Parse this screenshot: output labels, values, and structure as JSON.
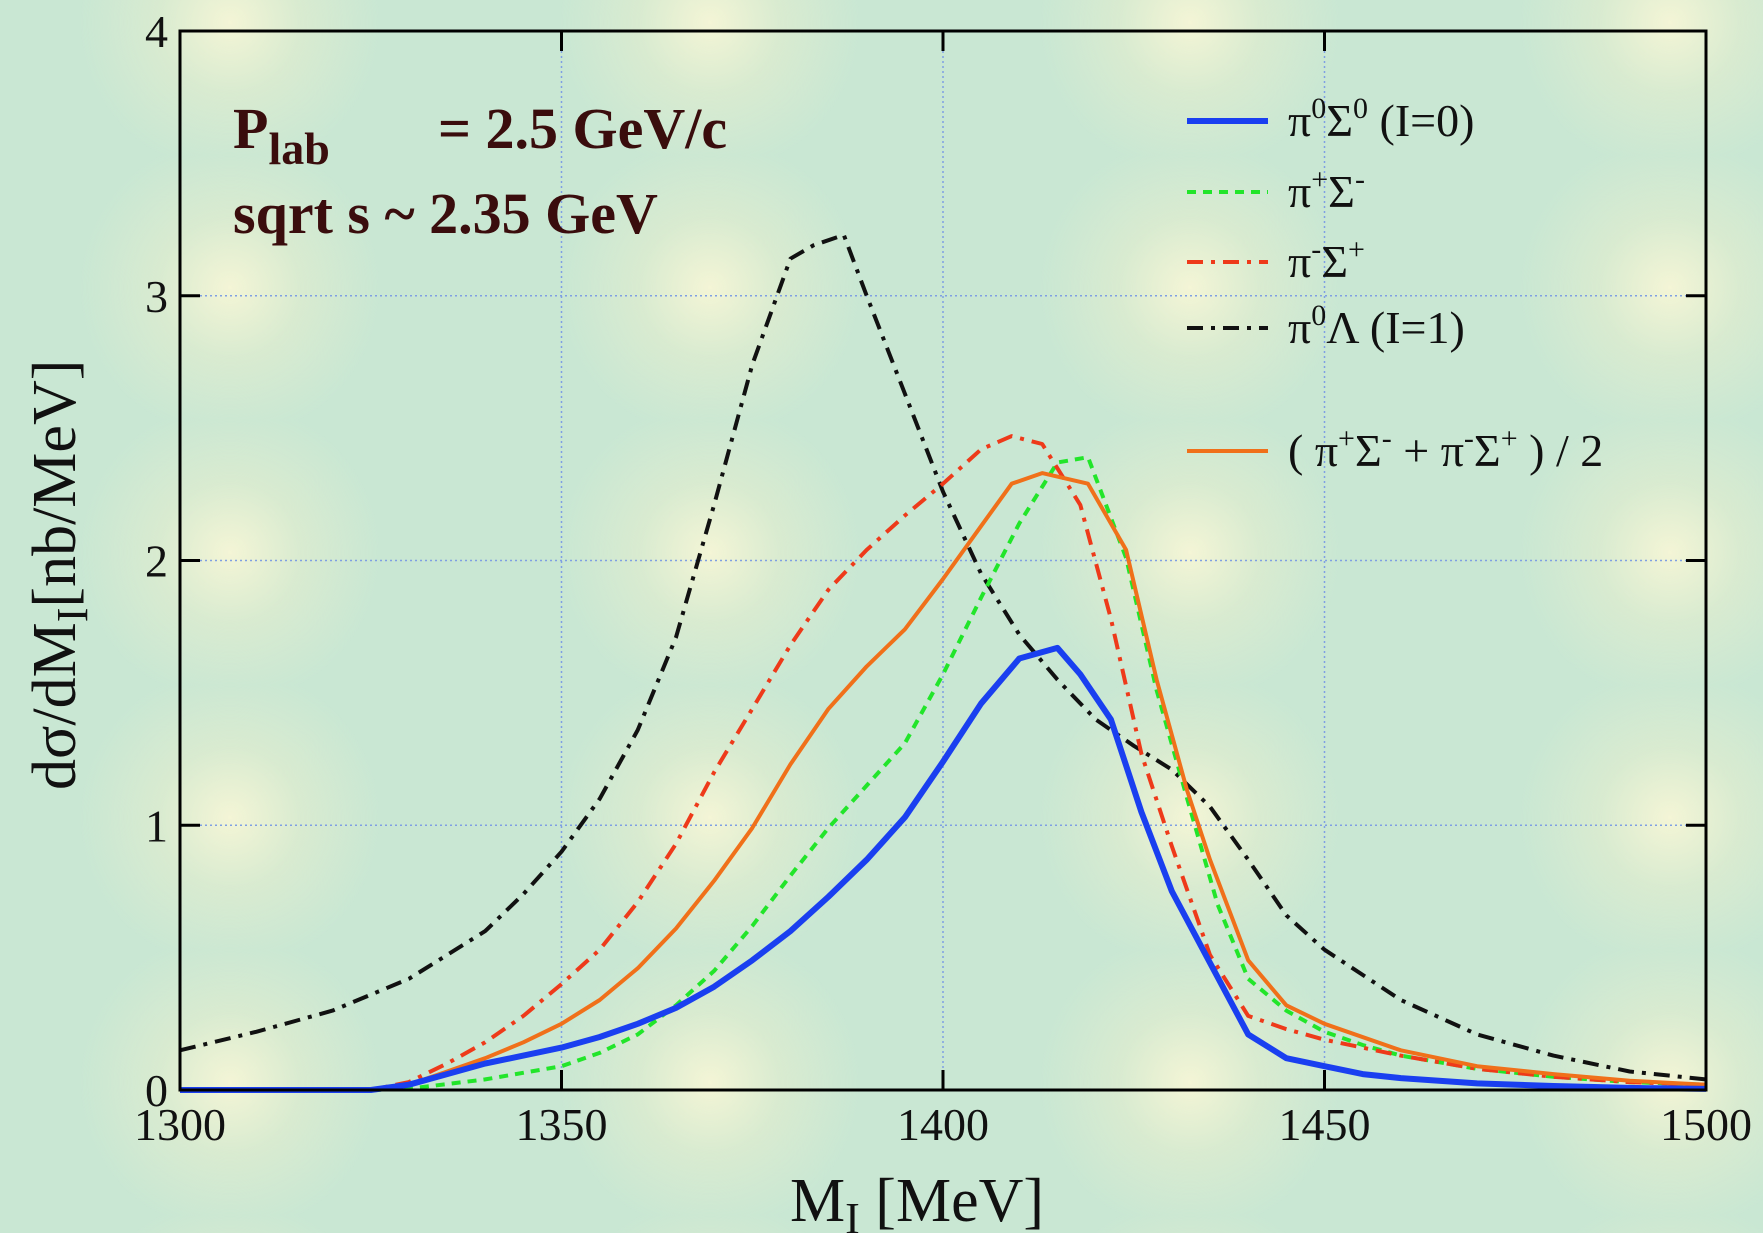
{
  "annotations": {
    "line1": [
      "P",
      "lab",
      "= 2.5 GeV/c"
    ],
    "line2": "sqrt s  ~ 2.35 GeV"
  },
  "chart_data": {
    "type": "line",
    "xlabel": "M_I [MeV]",
    "ylabel": "dσ/dM_I [nb/MeV]",
    "xlim": [
      1300,
      1500
    ],
    "ylim": [
      0,
      4
    ],
    "xticks": [
      1300,
      1350,
      1400,
      1450,
      1500
    ],
    "yticks": [
      0,
      1,
      2,
      3,
      4
    ],
    "grid": true,
    "legend_position": "top-right",
    "series": [
      {
        "key": "pi0sigma0",
        "label": [
          "π",
          "0",
          "Σ",
          "0",
          "  (I=0)"
        ],
        "color": "#1a3ff0",
        "dash": "",
        "width": 6,
        "x": [
          1300,
          1325,
          1330,
          1335,
          1340,
          1345,
          1350,
          1355,
          1360,
          1365,
          1370,
          1375,
          1380,
          1385,
          1390,
          1395,
          1400,
          1405,
          1410,
          1415,
          1418,
          1422,
          1426,
          1430,
          1435,
          1440,
          1445,
          1450,
          1455,
          1460,
          1470,
          1480,
          1490,
          1500
        ],
        "y": [
          0,
          0,
          0.02,
          0.06,
          0.1,
          0.13,
          0.16,
          0.2,
          0.25,
          0.31,
          0.39,
          0.49,
          0.6,
          0.73,
          0.87,
          1.03,
          1.24,
          1.46,
          1.63,
          1.67,
          1.57,
          1.4,
          1.05,
          0.75,
          0.48,
          0.21,
          0.12,
          0.09,
          0.06,
          0.045,
          0.025,
          0.015,
          0.008,
          0.004
        ]
      },
      {
        "key": "piplus_sigmaminus",
        "label": [
          "π",
          "+",
          "Σ",
          "-",
          ""
        ],
        "color": "#22e52a",
        "dash": "9,7",
        "width": 4,
        "x": [
          1300,
          1325,
          1330,
          1340,
          1350,
          1355,
          1360,
          1365,
          1370,
          1375,
          1380,
          1385,
          1390,
          1395,
          1400,
          1405,
          1410,
          1415,
          1419,
          1424,
          1428,
          1432,
          1436,
          1440,
          1445,
          1450,
          1455,
          1460,
          1470,
          1480,
          1490,
          1500
        ],
        "y": [
          0,
          0,
          0.005,
          0.04,
          0.09,
          0.14,
          0.21,
          0.32,
          0.45,
          0.62,
          0.81,
          0.99,
          1.15,
          1.31,
          1.57,
          1.86,
          2.14,
          2.37,
          2.39,
          2.01,
          1.51,
          1.1,
          0.7,
          0.42,
          0.3,
          0.22,
          0.17,
          0.13,
          0.08,
          0.05,
          0.03,
          0.02
        ]
      },
      {
        "key": "piminus_sigmaplus",
        "label": [
          "π",
          "-",
          "Σ",
          "+",
          ""
        ],
        "color": "#ee3a1a",
        "dash": "16,8,4,8",
        "width": 4,
        "x": [
          1300,
          1325,
          1330,
          1335,
          1340,
          1345,
          1350,
          1355,
          1360,
          1365,
          1370,
          1375,
          1380,
          1385,
          1390,
          1395,
          1400,
          1405,
          1409,
          1413,
          1418,
          1422,
          1426,
          1430,
          1435,
          1440,
          1445,
          1450,
          1460,
          1470,
          1480,
          1490,
          1500
        ],
        "y": [
          0,
          0,
          0.03,
          0.1,
          0.18,
          0.28,
          0.4,
          0.53,
          0.71,
          0.93,
          1.2,
          1.44,
          1.68,
          1.89,
          2.04,
          2.17,
          2.29,
          2.42,
          2.47,
          2.44,
          2.21,
          1.78,
          1.27,
          0.92,
          0.51,
          0.28,
          0.23,
          0.19,
          0.13,
          0.08,
          0.05,
          0.03,
          0.02
        ]
      },
      {
        "key": "pi0lambda",
        "label": [
          "π",
          "0",
          "Λ",
          "",
          " (I=1)"
        ],
        "color": "#111111",
        "dash": "16,8,4,8",
        "width": 4,
        "x": [
          1300,
          1310,
          1320,
          1330,
          1340,
          1345,
          1350,
          1355,
          1360,
          1365,
          1370,
          1375,
          1380,
          1383,
          1387,
          1390,
          1395,
          1400,
          1405,
          1410,
          1415,
          1420,
          1425,
          1430,
          1435,
          1440,
          1445,
          1450,
          1460,
          1470,
          1480,
          1490,
          1500
        ],
        "y": [
          0.15,
          0.22,
          0.3,
          0.42,
          0.6,
          0.74,
          0.9,
          1.1,
          1.36,
          1.71,
          2.21,
          2.74,
          3.14,
          3.19,
          3.23,
          3.0,
          2.63,
          2.26,
          1.95,
          1.72,
          1.55,
          1.4,
          1.3,
          1.21,
          1.07,
          0.87,
          0.66,
          0.53,
          0.34,
          0.21,
          0.13,
          0.07,
          0.04
        ]
      },
      {
        "key": "average",
        "label": [
          "( π",
          "+",
          "Σ",
          "-",
          " + π",
          "-",
          "Σ",
          "+",
          " ) / 2"
        ],
        "color": "#f0701a",
        "dash": "",
        "width": 4,
        "x": [
          1300,
          1325,
          1330,
          1335,
          1340,
          1345,
          1350,
          1355,
          1360,
          1365,
          1370,
          1375,
          1380,
          1385,
          1390,
          1395,
          1400,
          1405,
          1409,
          1413,
          1419,
          1424,
          1428,
          1432,
          1435,
          1440,
          1445,
          1450,
          1460,
          1470,
          1480,
          1490,
          1500
        ],
        "y": [
          0,
          0,
          0.02,
          0.07,
          0.12,
          0.18,
          0.25,
          0.34,
          0.46,
          0.61,
          0.79,
          0.99,
          1.23,
          1.44,
          1.6,
          1.74,
          1.93,
          2.13,
          2.29,
          2.33,
          2.29,
          2.04,
          1.55,
          1.13,
          0.87,
          0.49,
          0.32,
          0.25,
          0.15,
          0.09,
          0.06,
          0.035,
          0.02
        ]
      }
    ]
  }
}
